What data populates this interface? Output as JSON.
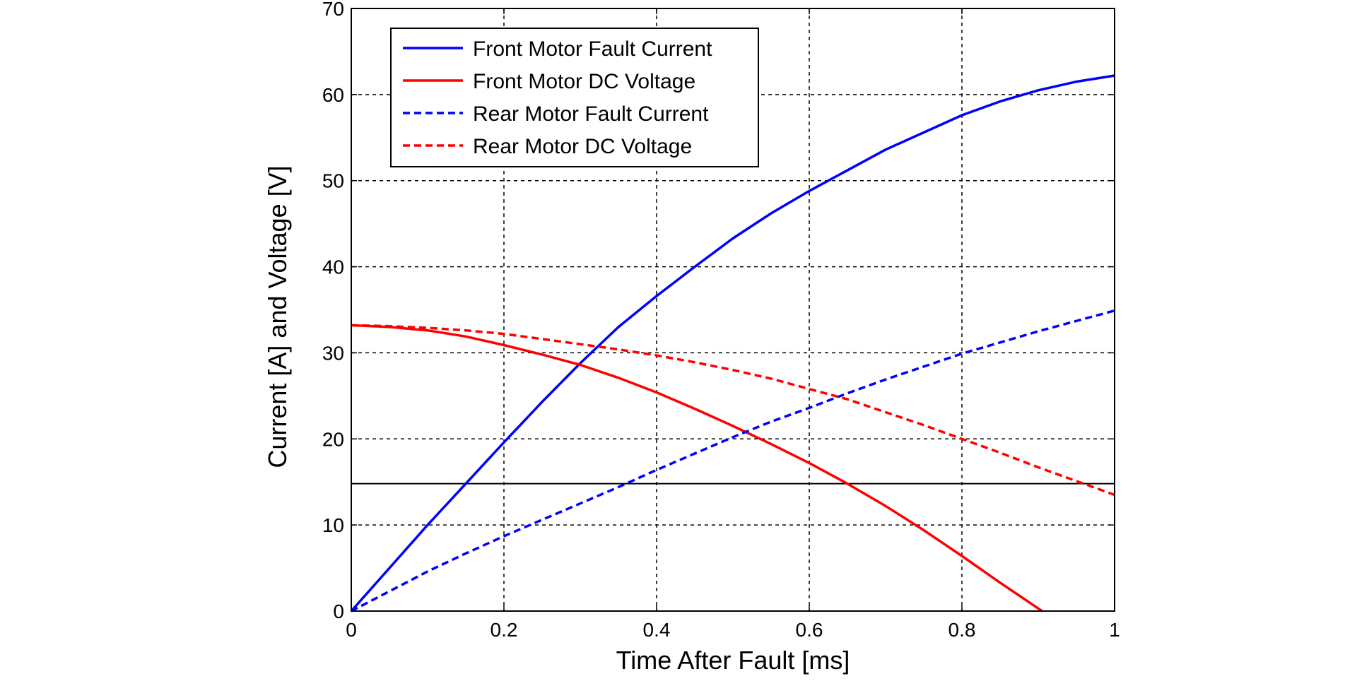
{
  "chart_data": {
    "type": "line",
    "title": "",
    "xlabel": "Time After Fault [ms]",
    "ylabel": "Current [A] and Voltage [V]",
    "xlim": [
      0,
      1
    ],
    "ylim": [
      0,
      70
    ],
    "xticks": [
      0,
      0.2,
      0.4,
      0.6,
      0.8,
      1
    ],
    "xtick_labels": [
      "0",
      "0.2",
      "0.4",
      "0.6",
      "0.8",
      "1"
    ],
    "yticks": [
      0,
      10,
      20,
      30,
      40,
      50,
      60,
      70
    ],
    "ytick_labels": [
      "0",
      "10",
      "20",
      "30",
      "40",
      "50",
      "60",
      "70"
    ],
    "grid": true,
    "legend_position": "top-left",
    "reference_line": {
      "y": 14.8,
      "color": "#000000"
    },
    "series": [
      {
        "name": "Front Motor Fault Current",
        "color": "#0000ff",
        "style": "solid",
        "x": [
          0,
          0.05,
          0.1,
          0.15,
          0.2,
          0.25,
          0.3,
          0.35,
          0.4,
          0.45,
          0.5,
          0.55,
          0.6,
          0.65,
          0.7,
          0.75,
          0.8,
          0.85,
          0.9,
          0.95,
          1.0
        ],
        "y": [
          0,
          5,
          10,
          14.8,
          19.6,
          24.3,
          28.8,
          33.0,
          36.6,
          40.0,
          43.3,
          46.2,
          48.8,
          51.2,
          53.6,
          55.6,
          57.6,
          59.2,
          60.5,
          61.5,
          62.2
        ]
      },
      {
        "name": "Front Motor DC Voltage",
        "color": "#ff0000",
        "style": "solid",
        "x": [
          0,
          0.05,
          0.1,
          0.15,
          0.2,
          0.25,
          0.3,
          0.35,
          0.4,
          0.45,
          0.5,
          0.55,
          0.6,
          0.65,
          0.7,
          0.75,
          0.8,
          0.85,
          0.9,
          0.905
        ],
        "y": [
          33.2,
          33.0,
          32.6,
          31.9,
          30.9,
          29.8,
          28.6,
          27.1,
          25.4,
          23.5,
          21.5,
          19.4,
          17.2,
          14.8,
          12.2,
          9.4,
          6.4,
          3.3,
          0.3,
          0
        ]
      },
      {
        "name": "Rear Motor Fault Current",
        "color": "#0000ff",
        "style": "dashed",
        "x": [
          0,
          0.05,
          0.1,
          0.15,
          0.2,
          0.25,
          0.3,
          0.35,
          0.4,
          0.45,
          0.5,
          0.55,
          0.6,
          0.65,
          0.7,
          0.75,
          0.8,
          0.85,
          0.9,
          0.95,
          1.0
        ],
        "y": [
          0,
          2.3,
          4.6,
          6.7,
          8.7,
          10.6,
          12.5,
          14.4,
          16.4,
          18.3,
          20.2,
          22.0,
          23.6,
          25.3,
          26.9,
          28.4,
          29.9,
          31.2,
          32.5,
          33.7,
          34.9
        ]
      },
      {
        "name": "Rear Motor DC Voltage",
        "color": "#ff0000",
        "style": "dashed",
        "x": [
          0,
          0.05,
          0.1,
          0.15,
          0.2,
          0.25,
          0.3,
          0.35,
          0.4,
          0.45,
          0.5,
          0.55,
          0.6,
          0.65,
          0.7,
          0.75,
          0.8,
          0.85,
          0.9,
          0.95,
          1.0
        ],
        "y": [
          33.2,
          33.1,
          32.9,
          32.6,
          32.2,
          31.6,
          31.0,
          30.4,
          29.7,
          28.9,
          28.0,
          27.0,
          25.8,
          24.6,
          23.1,
          21.6,
          20.0,
          18.4,
          16.7,
          15.1,
          13.5
        ]
      }
    ]
  }
}
